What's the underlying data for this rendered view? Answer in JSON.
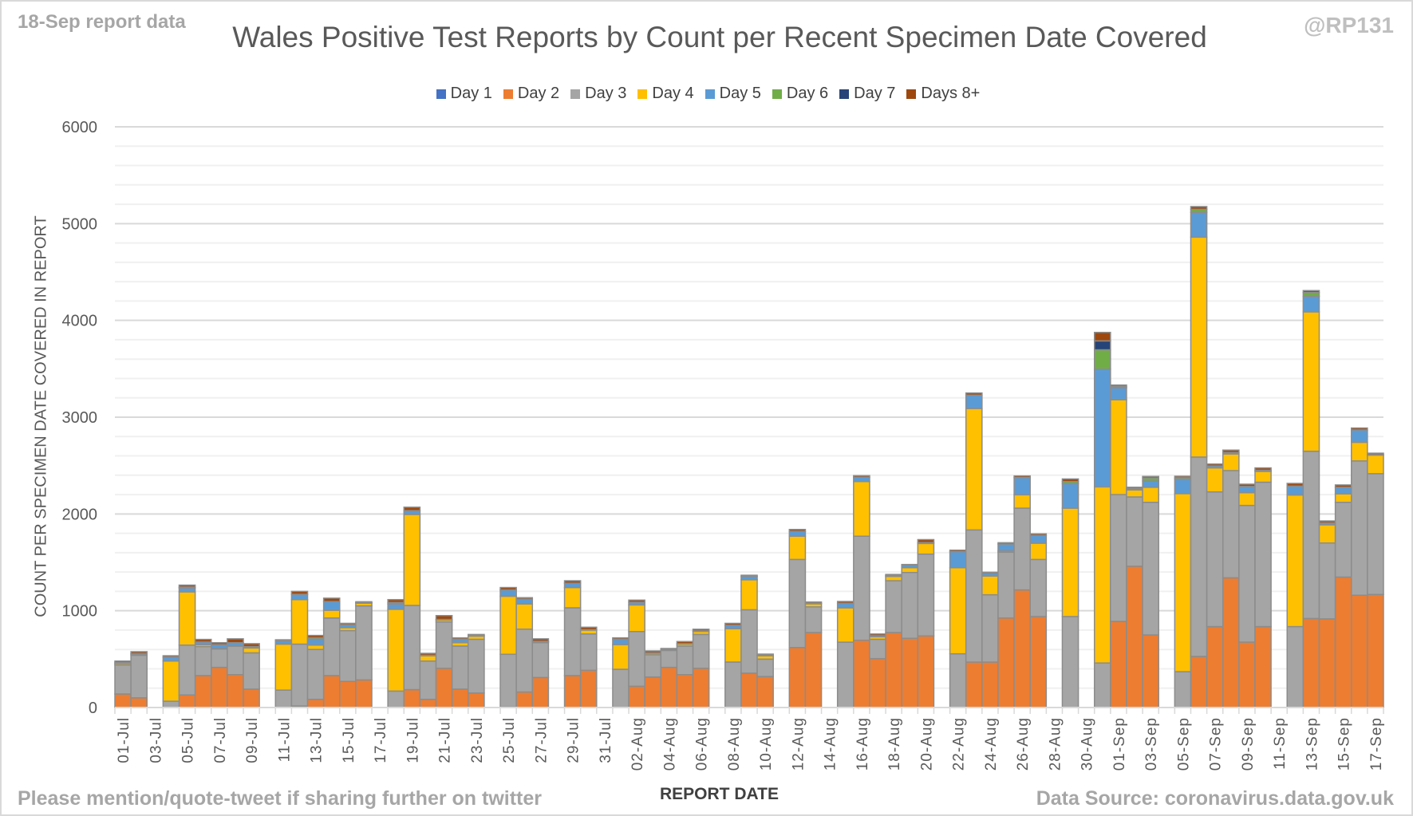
{
  "header": {
    "report_note": "18-Sep report data",
    "handle": "@RP131"
  },
  "footer": {
    "note": "Please mention/quote-tweet if sharing further on twitter",
    "source": "Data Source: coronavirus.data.gov.uk"
  },
  "chart_data": {
    "type": "bar",
    "stacked": true,
    "title": "Wales Positive Test Reports by Count per Recent Specimen Date Covered",
    "xlabel": "REPORT DATE",
    "ylabel": "COUNT PER SPECIMEN DATE COVERED IN REPORT",
    "ylim": [
      0,
      6000
    ],
    "y_ticks": [
      0,
      1000,
      2000,
      3000,
      4000,
      5000,
      6000
    ],
    "grid": true,
    "legend_position": "top",
    "x_tick_labels": [
      "01-Jul",
      "03-Jul",
      "05-Jul",
      "07-Jul",
      "09-Jul",
      "11-Jul",
      "13-Jul",
      "15-Jul",
      "17-Jul",
      "19-Jul",
      "21-Jul",
      "23-Jul",
      "25-Jul",
      "27-Jul",
      "29-Jul",
      "31-Jul",
      "02-Aug",
      "04-Aug",
      "06-Aug",
      "08-Aug",
      "10-Aug",
      "12-Aug",
      "14-Aug",
      "16-Aug",
      "18-Aug",
      "20-Aug",
      "22-Aug",
      "24-Aug",
      "26-Aug",
      "28-Aug",
      "30-Aug",
      "01-Sep",
      "03-Sep",
      "05-Sep",
      "07-Sep",
      "09-Sep",
      "11-Sep",
      "13-Sep",
      "15-Sep",
      "17-Sep"
    ],
    "series": [
      {
        "name": "Day 1",
        "color": "#4472C4",
        "values": [
          0,
          0,
          0,
          0,
          0,
          0,
          0,
          0,
          0,
          0,
          0,
          0,
          0,
          0,
          0,
          0,
          0,
          0,
          0,
          0,
          0,
          0,
          0,
          0,
          0,
          0,
          0,
          0,
          0,
          0,
          0,
          0,
          0,
          0,
          0,
          0,
          0,
          0,
          0,
          0,
          0,
          0,
          0,
          0,
          0,
          0,
          0,
          0,
          0,
          0,
          0,
          0,
          0,
          0,
          0,
          0,
          0,
          0,
          0,
          0,
          0,
          0,
          0,
          0,
          0,
          0,
          0,
          0,
          0,
          0,
          0,
          0,
          0,
          0,
          0,
          0,
          0,
          0,
          0
        ]
      },
      {
        "name": "Day 2",
        "color": "#ED7D31",
        "values": [
          140,
          100,
          0,
          0,
          130,
          330,
          415,
          340,
          190,
          0,
          0,
          15,
          85,
          330,
          270,
          285,
          0,
          0,
          185,
          85,
          405,
          190,
          150,
          0,
          5,
          160,
          310,
          0,
          330,
          385,
          0,
          0,
          220,
          315,
          415,
          340,
          405,
          0,
          0,
          355,
          320,
          0,
          620,
          775,
          0,
          0,
          695,
          505,
          775,
          715,
          740,
          0,
          0,
          470,
          470,
          925,
          1215,
          940,
          0,
          0,
          0,
          0,
          890,
          1460,
          750,
          0,
          0,
          528,
          836,
          1340,
          676,
          836,
          0,
          0,
          920,
          916,
          1348,
          1160,
          1168
        ]
      },
      {
        "name": "Day 3",
        "color": "#A5A5A5",
        "values": [
          300,
          440,
          0,
          65,
          515,
          300,
          190,
          295,
          375,
          0,
          180,
          640,
          515,
          595,
          525,
          765,
          0,
          170,
          870,
          395,
          480,
          445,
          555,
          0,
          545,
          650,
          360,
          0,
          700,
          375,
          0,
          395,
          565,
          230,
          175,
          295,
          350,
          0,
          470,
          655,
          180,
          0,
          910,
          265,
          0,
          675,
          1075,
          200,
          535,
          680,
          845,
          0,
          555,
          1365,
          695,
          680,
          845,
          590,
          0,
          940,
          0,
          460,
          1310,
          716,
          1370,
          0,
          370,
          2060,
          1392,
          1108,
          1412,
          1492,
          0,
          836,
          1728,
          784,
          772,
          1388,
          1248
        ]
      },
      {
        "name": "Day 4",
        "color": "#FFC000",
        "values": [
          15,
          12,
          0,
          415,
          550,
          20,
          5,
          5,
          50,
          0,
          475,
          460,
          45,
          80,
          30,
          28,
          0,
          845,
          940,
          55,
          20,
          35,
          33,
          0,
          600,
          260,
          10,
          0,
          210,
          40,
          0,
          255,
          275,
          15,
          5,
          20,
          32,
          0,
          345,
          310,
          35,
          0,
          240,
          32,
          0,
          355,
          565,
          27,
          45,
          50,
          110,
          0,
          890,
          1255,
          193,
          14,
          138,
          168,
          0,
          1120,
          0,
          1820,
          980,
          72,
          156,
          0,
          1840,
          2272,
          248,
          172,
          132,
          112,
          0,
          1360,
          1440,
          188,
          88,
          192,
          192
        ]
      },
      {
        "name": "Day 5",
        "color": "#5B9BD5",
        "values": [
          10,
          5,
          0,
          40,
          40,
          27,
          40,
          30,
          15,
          0,
          35,
          55,
          60,
          90,
          30,
          5,
          0,
          55,
          40,
          5,
          5,
          35,
          5,
          0,
          65,
          50,
          5,
          0,
          45,
          5,
          0,
          55,
          28,
          5,
          5,
          5,
          5,
          0,
          35,
          35,
          5,
          0,
          50,
          5,
          0,
          47,
          45,
          10,
          8,
          25,
          10,
          0,
          165,
          138,
          27,
          70,
          178,
          80,
          0,
          253,
          0,
          1216,
          124,
          14,
          64,
          0,
          148,
          256,
          20,
          15,
          64,
          12,
          0,
          92,
          160,
          20,
          68,
          128,
          5
        ]
      },
      {
        "name": "Day 6",
        "color": "#70AD47",
        "values": [
          0,
          0,
          0,
          0,
          10,
          0,
          0,
          0,
          0,
          0,
          0,
          0,
          15,
          0,
          0,
          0,
          0,
          15,
          0,
          0,
          0,
          0,
          0,
          0,
          0,
          0,
          0,
          0,
          0,
          0,
          0,
          0,
          0,
          0,
          0,
          0,
          0,
          0,
          0,
          0,
          0,
          0,
          0,
          0,
          0,
          0,
          0,
          0,
          0,
          0,
          0,
          0,
          0,
          0,
          0,
          0,
          0,
          0,
          0,
          22,
          0,
          200,
          14,
          0,
          32,
          0,
          16,
          32,
          0,
          0,
          0,
          0,
          0,
          0,
          40,
          0,
          0,
          0,
          0
        ]
      },
      {
        "name": "Day 7",
        "color": "#264478",
        "values": [
          0,
          0,
          0,
          0,
          0,
          0,
          0,
          0,
          0,
          0,
          0,
          0,
          0,
          0,
          0,
          0,
          0,
          0,
          0,
          0,
          0,
          0,
          0,
          0,
          0,
          0,
          0,
          0,
          0,
          0,
          0,
          0,
          0,
          0,
          0,
          0,
          0,
          0,
          0,
          0,
          0,
          0,
          0,
          0,
          0,
          0,
          0,
          0,
          0,
          0,
          0,
          0,
          0,
          0,
          0,
          0,
          0,
          0,
          0,
          0,
          0,
          92,
          0,
          0,
          0,
          0,
          0,
          0,
          0,
          0,
          0,
          0,
          0,
          0,
          0,
          0,
          0,
          0,
          0
        ]
      },
      {
        "name": "Days 8+",
        "color": "#9E480E",
        "values": [
          15,
          20,
          0,
          15,
          20,
          27,
          20,
          40,
          30,
          0,
          10,
          30,
          25,
          35,
          15,
          10,
          0,
          30,
          35,
          20,
          40,
          15,
          12,
          0,
          25,
          15,
          25,
          0,
          25,
          25,
          0,
          15,
          22,
          20,
          10,
          22,
          17,
          0,
          20,
          12,
          12,
          0,
          20,
          13,
          0,
          19,
          16,
          18,
          12,
          8,
          30,
          0,
          16,
          22,
          13,
          14,
          17,
          17,
          0,
          27,
          0,
          88,
          14,
          14,
          16,
          0,
          16,
          28,
          20,
          25,
          24,
          24,
          0,
          28,
          20,
          20,
          24,
          20,
          15
        ]
      }
    ]
  }
}
